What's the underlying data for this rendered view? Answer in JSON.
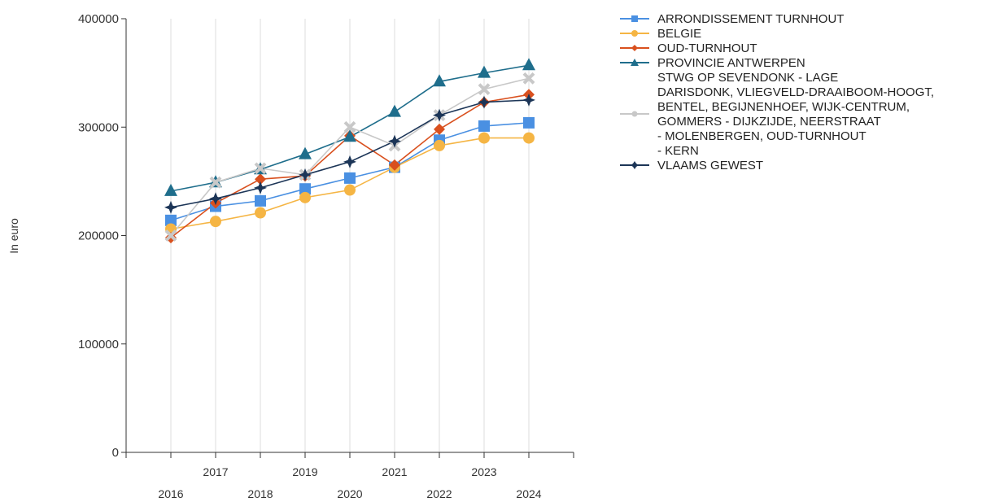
{
  "chart_data": {
    "type": "line",
    "ylabel": "In euro",
    "xlabel": "",
    "ylim": [
      0,
      400000
    ],
    "yticks": [
      "0",
      "100000",
      "200000",
      "300000",
      "400000"
    ],
    "x": [
      "2016",
      "2017",
      "2018",
      "2019",
      "2020",
      "2021",
      "2022",
      "2023",
      "2024"
    ],
    "grid": "vertical",
    "legend": "right",
    "series": [
      {
        "name": "ARRONDISSEMENT TURNHOUT",
        "color": "#4a90e2",
        "marker": "square",
        "values": [
          214000,
          227000,
          232000,
          243000,
          253000,
          263000,
          288000,
          301000,
          304000
        ]
      },
      {
        "name": "BELGIE",
        "color": "#f5b544",
        "marker": "circle",
        "values": [
          206000,
          213000,
          221000,
          235000,
          242000,
          263000,
          283000,
          290000,
          290000
        ]
      },
      {
        "name": "OUD-TURNHOUT",
        "color": "#d9501e",
        "marker": "diamond",
        "values": [
          198000,
          230000,
          252000,
          255000,
          292000,
          265000,
          298000,
          323000,
          330000
        ]
      },
      {
        "name": "PROVINCIE ANTWERPEN",
        "color": "#1f6e8c",
        "marker": "triangle",
        "values": [
          241000,
          249000,
          261000,
          275000,
          291000,
          314000,
          342000,
          350000,
          357000
        ]
      },
      {
        "name_lines": [
          "STWG OP SEVENDONK - LAGE",
          "DARISDONK, VLIEGVELD-DRAAIBOOM-HOOGT,",
          "BENTEL, BEGIJNENHOEF, WIJK-CENTRUM,",
          "GOMMERS - DIJKZIJDE, NEERSTRAAT",
          "- MOLENBERGEN, OUD-TURNHOUT",
          "- KERN"
        ],
        "color": "#c8c8c8",
        "marker": "x",
        "values": [
          200000,
          249000,
          262000,
          256000,
          300000,
          283000,
          311000,
          335000,
          345000
        ]
      },
      {
        "name": "VLAAMS GEWEST",
        "color": "#1c3557",
        "marker": "star",
        "values": [
          226000,
          234000,
          244000,
          256000,
          268000,
          287000,
          311000,
          323000,
          325000
        ]
      }
    ]
  }
}
